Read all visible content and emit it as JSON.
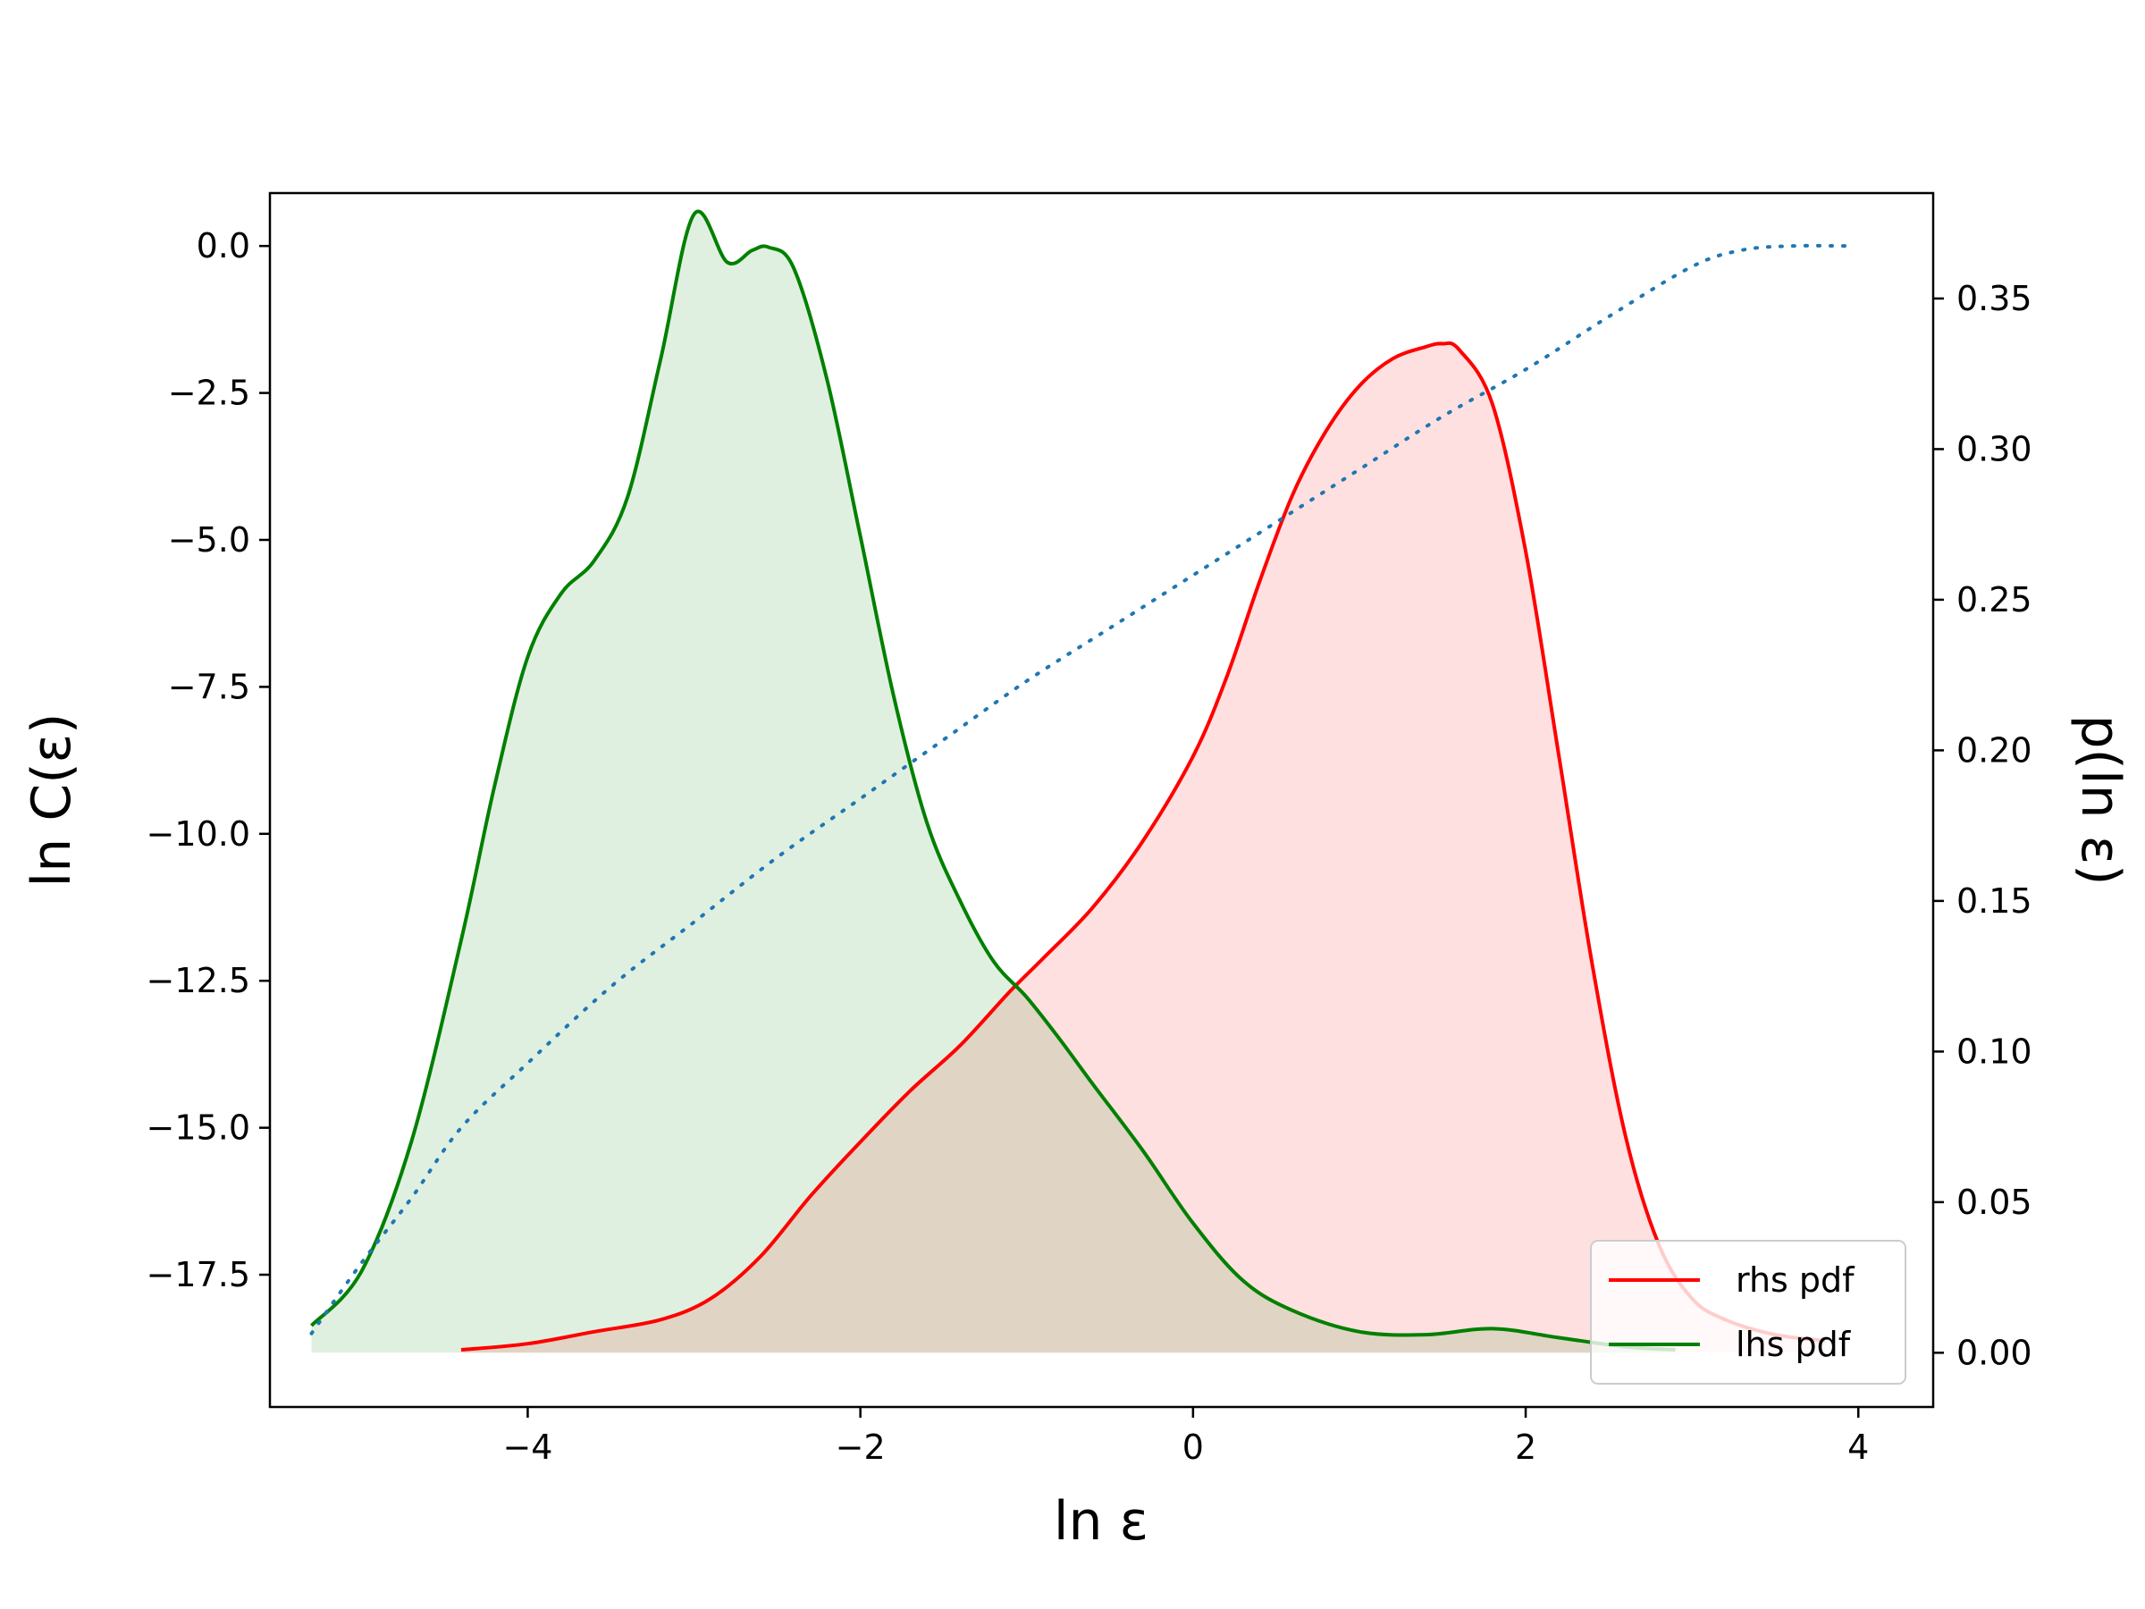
{
  "chart_data": {
    "type": "line",
    "xlabel": "ln ε",
    "ylabel_left": "ln C(ε)",
    "ylabel_right": "p(ln ε)",
    "xlim": [
      -5.55,
      4.45
    ],
    "ylim_left": [
      -19.75,
      0.9
    ],
    "ylim_right": [
      -0.018,
      0.385
    ],
    "x_ticks": [
      -4,
      -2,
      0,
      2,
      4
    ],
    "x_tick_labels": [
      "−4",
      "−2",
      "0",
      "2",
      "4"
    ],
    "y_left_ticks": [
      0.0,
      -2.5,
      -5.0,
      -7.5,
      -10.0,
      -12.5,
      -15.0,
      -17.5
    ],
    "y_left_tick_labels": [
      "0.0",
      "−2.5",
      "−5.0",
      "−7.5",
      "−10.0",
      "−12.5",
      "−15.0",
      "−17.5"
    ],
    "y_right_ticks": [
      0.0,
      0.05,
      0.1,
      0.15,
      0.2,
      0.25,
      0.3,
      0.35
    ],
    "y_right_tick_labels": [
      "0.00",
      "0.05",
      "0.10",
      "0.15",
      "0.20",
      "0.25",
      "0.30",
      "0.35"
    ],
    "grid": false,
    "legend_position": "bottom-right",
    "series": [
      {
        "name": "rhs pdf",
        "axis": "right",
        "color": "#ff0000",
        "fill": "#ffdfe3",
        "style": "solid",
        "x": [
          -4.4,
          -4.0,
          -3.6,
          -3.2,
          -2.9,
          -2.6,
          -2.3,
          -2.0,
          -1.7,
          -1.4,
          -1.1,
          -0.9,
          -0.6,
          -0.3,
          0.0,
          0.2,
          0.4,
          0.6,
          0.8,
          1.0,
          1.2,
          1.4,
          1.5,
          1.6,
          1.8,
          2.0,
          2.2,
          2.4,
          2.6,
          2.8,
          3.0,
          3.2,
          3.5,
          3.8
        ],
        "y": [
          0.001,
          0.003,
          0.007,
          0.011,
          0.018,
          0.032,
          0.052,
          0.07,
          0.087,
          0.102,
          0.12,
          0.131,
          0.148,
          0.17,
          0.198,
          0.224,
          0.256,
          0.285,
          0.306,
          0.321,
          0.33,
          0.334,
          0.335,
          0.333,
          0.315,
          0.266,
          0.198,
          0.129,
          0.072,
          0.036,
          0.018,
          0.011,
          0.006,
          0.004
        ]
      },
      {
        "name": "lhs pdf",
        "axis": "right",
        "color": "#008000",
        "fill": "#e3f0e3",
        "style": "solid",
        "x": [
          -5.3,
          -5.0,
          -4.7,
          -4.4,
          -4.2,
          -4.0,
          -3.8,
          -3.6,
          -3.4,
          -3.2,
          -3.0,
          -2.8,
          -2.65,
          -2.55,
          -2.4,
          -2.2,
          -2.0,
          -1.8,
          -1.6,
          -1.4,
          -1.2,
          -1.0,
          -0.8,
          -0.6,
          -0.3,
          0.0,
          0.3,
          0.6,
          1.0,
          1.4,
          1.8,
          2.2,
          2.6,
          2.9
        ],
        "y": [
          0.009,
          0.027,
          0.07,
          0.137,
          0.188,
          0.231,
          0.252,
          0.263,
          0.284,
          0.33,
          0.378,
          0.362,
          0.366,
          0.367,
          0.36,
          0.323,
          0.271,
          0.218,
          0.176,
          0.15,
          0.13,
          0.118,
          0.104,
          0.089,
          0.067,
          0.043,
          0.024,
          0.014,
          0.007,
          0.006,
          0.008,
          0.005,
          0.002,
          0.001
        ]
      },
      {
        "name": "",
        "axis": "left",
        "color": "#1f77b4",
        "style": "dotted",
        "x": [
          -5.3,
          -5.0,
          -4.7,
          -4.4,
          -4.0,
          -3.5,
          -3.0,
          -2.5,
          -2.0,
          -1.5,
          -1.0,
          -0.5,
          0.0,
          0.5,
          1.0,
          1.5,
          2.0,
          2.5,
          3.0,
          3.3,
          3.6,
          3.95
        ],
        "y": [
          -18.5,
          -17.3,
          -16.2,
          -15.0,
          -13.9,
          -12.6,
          -11.5,
          -10.4,
          -9.4,
          -8.4,
          -7.4,
          -6.5,
          -5.6,
          -4.7,
          -3.8,
          -2.9,
          -2.1,
          -1.2,
          -0.35,
          -0.07,
          0.0,
          0.0
        ]
      }
    ]
  }
}
